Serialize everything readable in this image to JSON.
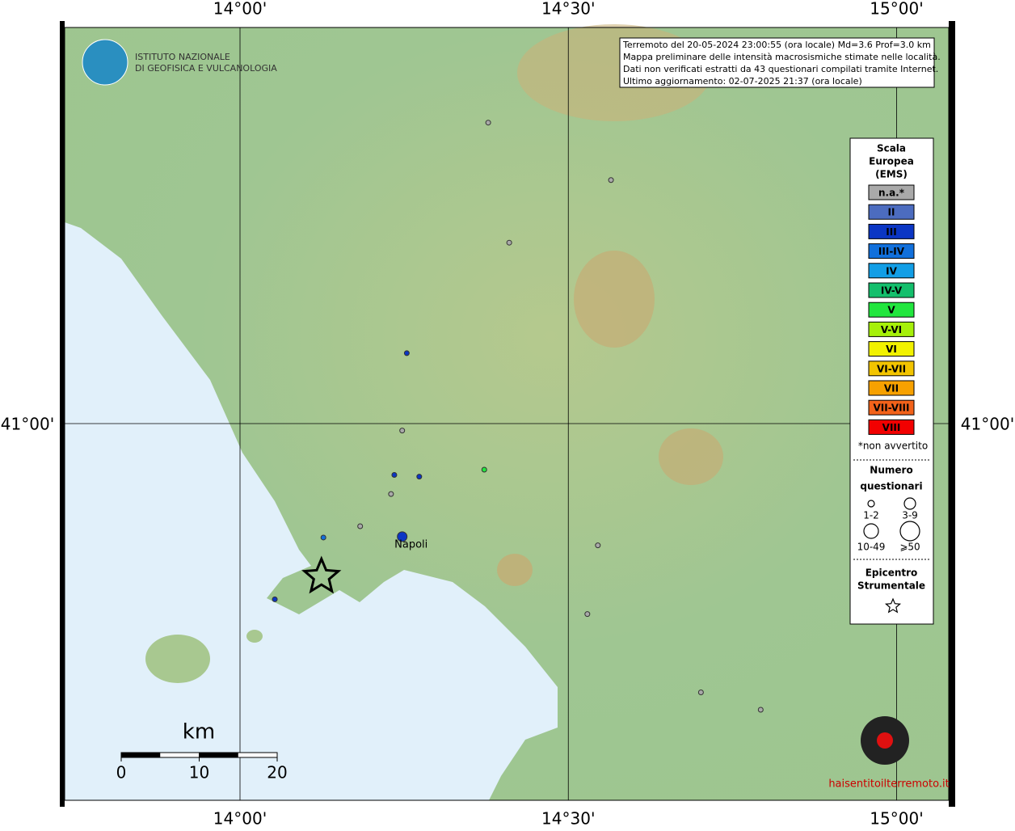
{
  "header": {
    "institute_line1": "ISTITUTO NAZIONALE",
    "institute_line2": "DI GEOFISICA E VULCANOLOGIA",
    "info": [
      "Terremoto del 20-05-2024 23:00:55 (ora locale) Md=3.6 Prof=3.0 km",
      "Mappa preliminare delle intensità macrosismiche stimate nelle località.",
      "Dati non verificati estratti da 43 questionari compilati tramite Internet.",
      "Ultimo aggiornamento: 02-07-2025 21:37 (ora locale)"
    ]
  },
  "map": {
    "lon_ticks": [
      {
        "value": 14.0,
        "label": "14°00'"
      },
      {
        "value": 14.5,
        "label": "14°30'"
      },
      {
        "value": 15.0,
        "label": "15°00'"
      }
    ],
    "lat_ticks": [
      {
        "value": 41.0,
        "label": "41°00'"
      }
    ],
    "place": "Napoli",
    "epicenter": {
      "lon": 14.124,
      "lat": 40.824
    },
    "points": [
      {
        "lon": 14.378,
        "lat": 41.346,
        "class": 0,
        "size": 0
      },
      {
        "lon": 14.565,
        "lat": 41.28,
        "class": 0,
        "size": 0
      },
      {
        "lon": 14.41,
        "lat": 41.208,
        "class": 0,
        "size": 0
      },
      {
        "lon": 14.254,
        "lat": 41.081,
        "class": 2,
        "size": 0
      },
      {
        "lon": 14.247,
        "lat": 40.992,
        "class": 0,
        "size": 0
      },
      {
        "lon": 14.235,
        "lat": 40.941,
        "class": 2,
        "size": 0
      },
      {
        "lon": 14.273,
        "lat": 40.939,
        "class": 2,
        "size": 0
      },
      {
        "lon": 14.372,
        "lat": 40.947,
        "class": 6,
        "size": 0
      },
      {
        "lon": 14.23,
        "lat": 40.919,
        "class": 0,
        "size": 0
      },
      {
        "lon": 14.183,
        "lat": 40.882,
        "class": 0,
        "size": 0
      },
      {
        "lon": 14.127,
        "lat": 40.869,
        "class": 3,
        "size": 0
      },
      {
        "lon": 14.247,
        "lat": 40.87,
        "class": 2,
        "size": 1
      },
      {
        "lon": 14.545,
        "lat": 40.86,
        "class": 0,
        "size": 0
      },
      {
        "lon": 14.053,
        "lat": 40.798,
        "class": 2,
        "size": 0
      },
      {
        "lon": 14.529,
        "lat": 40.781,
        "class": 0,
        "size": 0
      },
      {
        "lon": 14.702,
        "lat": 40.691,
        "class": 0,
        "size": 0
      },
      {
        "lon": 14.793,
        "lat": 40.671,
        "class": 0,
        "size": 0
      }
    ],
    "scale_unit": "km",
    "scale_ticks": [
      0,
      10,
      20
    ]
  },
  "legend": {
    "title": [
      "Scala",
      "Europea",
      "(EMS)"
    ],
    "classes": [
      {
        "label": "n.a.*",
        "color": "#a9a9a9"
      },
      {
        "label": "II",
        "color": "#4c6cbf"
      },
      {
        "label": "III",
        "color": "#0b36c4"
      },
      {
        "label": "III-IV",
        "color": "#1170dc"
      },
      {
        "label": "IV",
        "color": "#129ee6"
      },
      {
        "label": "IV-V",
        "color": "#14bf6c"
      },
      {
        "label": "V",
        "color": "#22e63e"
      },
      {
        "label": "V-VI",
        "color": "#a6f00a"
      },
      {
        "label": "VI",
        "color": "#f2f200"
      },
      {
        "label": "VI-VII",
        "color": "#f2c400"
      },
      {
        "label": "VII",
        "color": "#f7a100"
      },
      {
        "label": "VII-VIII",
        "color": "#f2621a"
      },
      {
        "label": "VIII",
        "color": "#f20000"
      }
    ],
    "note": "*non avvertito",
    "count_title": [
      "Numero",
      "questionari"
    ],
    "sizes": [
      "1-2",
      "3-9",
      "10-49",
      "⩾50"
    ],
    "epi_title": [
      "Epicentro",
      "Strumentale"
    ]
  },
  "logo": "haisentitoilterremoto.it"
}
